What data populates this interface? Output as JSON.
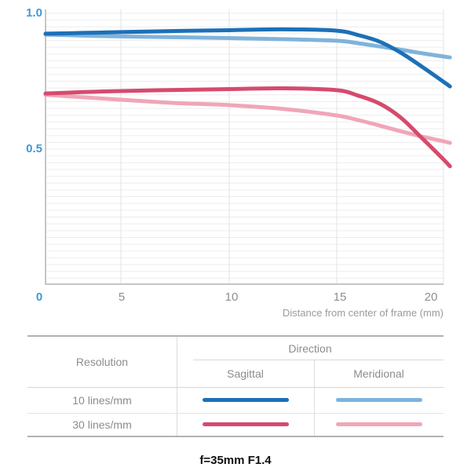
{
  "chart": {
    "y_ticks": [
      "1.0",
      "0.5"
    ],
    "x_ticks": [
      "0",
      "5",
      "10",
      "15",
      "20"
    ],
    "x_axis_label": "Distance from center of frame (mm)"
  },
  "chart_data": {
    "type": "line",
    "title": "f=35mm F1.4",
    "xlabel": "Distance from center of frame (mm)",
    "ylabel": "",
    "xlim": [
      0,
      20.3
    ],
    "ylim": [
      0,
      1.0
    ],
    "x_tick_values": [
      0,
      5,
      10,
      15,
      20
    ],
    "y_tick_values": [
      1.0,
      0.5
    ],
    "grid": {
      "horizontal_step": 0.025,
      "vertical_at_x_ticks": true
    },
    "legend_position": "table below chart",
    "x": [
      0,
      2.5,
      5,
      7.5,
      10,
      12.5,
      15,
      16,
      17,
      18,
      19,
      20,
      20.3
    ],
    "series": [
      {
        "name": "10 lines/mm Sagittal",
        "color": "#1d70b7",
        "values": [
          0.925,
          0.928,
          0.931,
          0.935,
          0.938,
          0.941,
          0.936,
          0.92,
          0.896,
          0.855,
          0.803,
          0.748,
          0.731
        ]
      },
      {
        "name": "10 lines/mm Meridional",
        "color": "#7fb3dc",
        "values": [
          0.922,
          0.918,
          0.915,
          0.912,
          0.909,
          0.905,
          0.899,
          0.89,
          0.878,
          0.866,
          0.853,
          0.841,
          0.838
        ]
      },
      {
        "name": "30 lines/mm Sagittal",
        "color": "#d64a6e",
        "values": [
          0.705,
          0.71,
          0.714,
          0.718,
          0.721,
          0.724,
          0.717,
          0.697,
          0.668,
          0.616,
          0.54,
          0.462,
          0.437
        ]
      },
      {
        "name": "30 lines/mm Meridional",
        "color": "#f0a6b8",
        "values": [
          0.7,
          0.691,
          0.682,
          0.67,
          0.662,
          0.648,
          0.624,
          0.607,
          0.587,
          0.566,
          0.546,
          0.529,
          0.523
        ]
      }
    ]
  },
  "table": {
    "resolution_header": "Resolution",
    "direction_header": "Direction",
    "sagittal_header": "Sagittal",
    "meridional_header": "Meridional",
    "rows": [
      {
        "label": "10 lines/mm",
        "sagittal_color": "#1d70b7",
        "meridional_color": "#7fb3dc"
      },
      {
        "label": "30 lines/mm",
        "sagittal_color": "#d64a6e",
        "meridional_color": "#f0a6b8"
      }
    ]
  },
  "footer": {
    "title": "f=35mm F1.4"
  }
}
